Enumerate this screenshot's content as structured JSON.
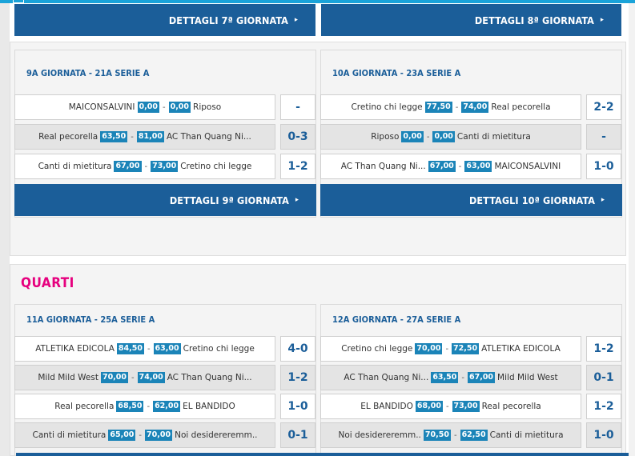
{
  "colors": {
    "primary": "#1b5e99",
    "score_box": "#1b84b8",
    "section_title": "#e6007e",
    "topbar": "#1aa3d9"
  },
  "top_buttons": {
    "left": {
      "label": "DETTAGLI 7ª GIORNATA",
      "arrow": "▸"
    },
    "right": {
      "label": "DETTAGLI 8ª GIORNATA",
      "arrow": "▸"
    }
  },
  "group1": {
    "left": {
      "title": "9A GIORNATA - 21A SERIE A",
      "matches": [
        {
          "home": "MAICONSALVINI",
          "home_score": "0,00",
          "away_score": "0,00",
          "away": "Riposo",
          "result": "-"
        },
        {
          "home": "Real pecorella",
          "home_score": "63,50",
          "away_score": "81,00",
          "away": "AC Than Quang Ni...",
          "result": "0-3"
        },
        {
          "home": "Canti di mietitura",
          "home_score": "67,00",
          "away_score": "73,00",
          "away": "Cretino chi legge",
          "result": "1-2"
        }
      ],
      "button": {
        "label": "DETTAGLI 9ª GIORNATA",
        "arrow": "▸"
      }
    },
    "right": {
      "title": "10A GIORNATA - 23A SERIE A",
      "matches": [
        {
          "home": "Cretino chi legge",
          "home_score": "77,50",
          "away_score": "74,00",
          "away": "Real pecorella",
          "result": "2-2"
        },
        {
          "home": "Riposo",
          "home_score": "0,00",
          "away_score": "0,00",
          "away": "Canti di mietitura",
          "result": "-"
        },
        {
          "home": "AC Than Quang Ni...",
          "home_score": "67,00",
          "away_score": "63,00",
          "away": "MAICONSALVINI",
          "result": "1-0"
        }
      ],
      "button": {
        "label": "DETTAGLI 10ª GIORNATA",
        "arrow": "▸"
      }
    }
  },
  "quarti": {
    "section_title": "QUARTI",
    "left": {
      "title": "11A GIORNATA - 25A SERIE A",
      "matches": [
        {
          "home": "ATLETIKA EDICOLA",
          "home_score": "84,50",
          "away_score": "63,00",
          "away": "Cretino chi legge",
          "result": "4-0"
        },
        {
          "home": "Mild Mild West",
          "home_score": "70,00",
          "away_score": "74,00",
          "away": "AC Than Quang Ni...",
          "result": "1-2"
        },
        {
          "home": "Real pecorella",
          "home_score": "68,50",
          "away_score": "62,00",
          "away": "EL BANDIDO",
          "result": "1-0"
        },
        {
          "home": "Canti di mietitura",
          "home_score": "65,00",
          "away_score": "70,00",
          "away": "Noi desidereremm..",
          "result": "0-1"
        }
      ]
    },
    "right": {
      "title": "12A GIORNATA - 27A SERIE A",
      "matches": [
        {
          "home": "Cretino chi legge",
          "home_score": "70,00",
          "away_score": "72,50",
          "away": "ATLETIKA EDICOLA",
          "result": "1-2"
        },
        {
          "home": "AC Than Quang Ni...",
          "home_score": "63,50",
          "away_score": "67,00",
          "away": "Mild Mild West",
          "result": "0-1"
        },
        {
          "home": "EL BANDIDO",
          "home_score": "68,00",
          "away_score": "73,00",
          "away": "Real pecorella",
          "result": "1-2"
        },
        {
          "home": "Noi desidereremm..",
          "home_score": "70,50",
          "away_score": "62,50",
          "away": "Canti di mietitura",
          "result": "1-0"
        }
      ]
    }
  }
}
